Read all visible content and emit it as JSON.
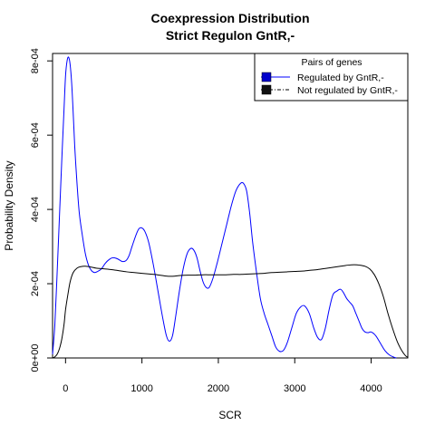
{
  "chart_data": {
    "type": "line",
    "title_line1": "Coexpression Distribution",
    "title_line2": "Strict Regulon GntR,-",
    "xlabel": "SCR",
    "ylabel": "Probability Density",
    "xlim": [
      -170,
      4480
    ],
    "ylim": [
      0,
      0.00082
    ],
    "x_ticks": [
      0,
      1000,
      2000,
      3000,
      4000
    ],
    "x_tick_labels": [
      "0",
      "1000",
      "2000",
      "3000",
      "4000"
    ],
    "y_ticks": [
      0,
      0.0002,
      0.0004,
      0.0006,
      0.0008
    ],
    "y_tick_labels": [
      "0e+00",
      "2e-04",
      "4e-04",
      "6e-04",
      "8e-04"
    ],
    "grid": false,
    "legend": {
      "title": "Pairs of genes",
      "position": "top-right",
      "entries": [
        "Regulated by  GntR,-",
        "Not regulated by  GntR,-"
      ]
    },
    "series": [
      {
        "name": "Regulated by  GntR,-",
        "color": "#0000ff",
        "style": "solid",
        "points": [
          [
            -170,
            1e-05
          ],
          [
            -140,
            9e-05
          ],
          [
            -110,
            0.00023
          ],
          [
            -80,
            0.00038
          ],
          [
            -50,
            0.00053
          ],
          [
            -20,
            0.00067
          ],
          [
            0,
            0.00076
          ],
          [
            20,
            0.0008
          ],
          [
            40,
            0.00081
          ],
          [
            60,
            0.00079
          ],
          [
            80,
            0.00074
          ],
          [
            100,
            0.00066
          ],
          [
            120,
            0.00057
          ],
          [
            150,
            0.00047
          ],
          [
            180,
            0.00039
          ],
          [
            220,
            0.00033
          ],
          [
            260,
            0.00028
          ],
          [
            300,
            0.00025
          ],
          [
            340,
            0.000235
          ],
          [
            380,
            0.00023
          ],
          [
            420,
            0.000233
          ],
          [
            470,
            0.00024
          ],
          [
            520,
            0.000255
          ],
          [
            570,
            0.000265
          ],
          [
            620,
            0.00027
          ],
          [
            680,
            0.000267
          ],
          [
            740,
            0.00026
          ],
          [
            790,
            0.000262
          ],
          [
            830,
            0.000275
          ],
          [
            870,
            0.0003
          ],
          [
            920,
            0.00033
          ],
          [
            960,
            0.000348
          ],
          [
            1000,
            0.00035
          ],
          [
            1040,
            0.00034
          ],
          [
            1090,
            0.00031
          ],
          [
            1150,
            0.00025
          ],
          [
            1210,
            0.00018
          ],
          [
            1270,
            0.00011
          ],
          [
            1320,
            6e-05
          ],
          [
            1360,
            4.5e-05
          ],
          [
            1400,
            6e-05
          ],
          [
            1440,
            0.00011
          ],
          [
            1490,
            0.00018
          ],
          [
            1540,
            0.00024
          ],
          [
            1590,
            0.00028
          ],
          [
            1640,
            0.000295
          ],
          [
            1680,
            0.00029
          ],
          [
            1720,
            0.00027
          ],
          [
            1760,
            0.000235
          ],
          [
            1800,
            0.000205
          ],
          [
            1840,
            0.00019
          ],
          [
            1880,
            0.00019
          ],
          [
            1930,
            0.000215
          ],
          [
            1990,
            0.00026
          ],
          [
            2050,
            0.00031
          ],
          [
            2110,
            0.00036
          ],
          [
            2170,
            0.00041
          ],
          [
            2230,
            0.00045
          ],
          [
            2290,
            0.00047
          ],
          [
            2330,
            0.00047
          ],
          [
            2370,
            0.00045
          ],
          [
            2410,
            0.00039
          ],
          [
            2450,
            0.00031
          ],
          [
            2500,
            0.00023
          ],
          [
            2550,
            0.00016
          ],
          [
            2600,
            0.00012
          ],
          [
            2650,
            9e-05
          ],
          [
            2700,
            6e-05
          ],
          [
            2750,
            3e-05
          ],
          [
            2800,
            1.8e-05
          ],
          [
            2850,
            2e-05
          ],
          [
            2900,
            4e-05
          ],
          [
            2960,
            8e-05
          ],
          [
            3020,
            0.00012
          ],
          [
            3080,
            0.000138
          ],
          [
            3130,
            0.00014
          ],
          [
            3190,
            0.00012
          ],
          [
            3250,
            8e-05
          ],
          [
            3300,
            5.5e-05
          ],
          [
            3350,
            5e-05
          ],
          [
            3400,
            8e-05
          ],
          [
            3450,
            0.00013
          ],
          [
            3500,
            0.00017
          ],
          [
            3550,
            0.00018
          ],
          [
            3600,
            0.000185
          ],
          [
            3640,
            0.000175
          ],
          [
            3680,
            0.00016
          ],
          [
            3720,
            0.00015
          ],
          [
            3760,
            0.00014
          ],
          [
            3800,
            0.00012
          ],
          [
            3840,
            0.0001
          ],
          [
            3880,
            8e-05
          ],
          [
            3920,
            7e-05
          ],
          [
            3960,
            6.8e-05
          ],
          [
            4000,
            7e-05
          ],
          [
            4060,
            6e-05
          ],
          [
            4120,
            4e-05
          ],
          [
            4180,
            2e-05
          ],
          [
            4240,
            8e-06
          ],
          [
            4300,
            2e-06
          ],
          [
            4330,
            0.0
          ]
        ]
      },
      {
        "name": "Not regulated by  GntR,-",
        "color": "#000000",
        "style": "solid",
        "points": [
          [
            -170,
            0.0
          ],
          [
            -140,
            3e-06
          ],
          [
            -110,
            1e-05
          ],
          [
            -80,
            2.5e-05
          ],
          [
            -50,
            5e-05
          ],
          [
            -20,
            9e-05
          ],
          [
            0,
            0.00013
          ],
          [
            30,
            0.00017
          ],
          [
            60,
            0.000205
          ],
          [
            100,
            0.00023
          ],
          [
            150,
            0.000242
          ],
          [
            200,
            0.000246
          ],
          [
            260,
            0.000247
          ],
          [
            330,
            0.000245
          ],
          [
            400,
            0.000242
          ],
          [
            500,
            0.00024
          ],
          [
            600,
            0.000238
          ],
          [
            700,
            0.000235
          ],
          [
            800,
            0.000232
          ],
          [
            900,
            0.00023
          ],
          [
            1000,
            0.000228
          ],
          [
            1100,
            0.000226
          ],
          [
            1200,
            0.000224
          ],
          [
            1300,
            0.000221
          ],
          [
            1400,
            0.00022
          ],
          [
            1500,
            0.000222
          ],
          [
            1600,
            0.000223
          ],
          [
            1700,
            0.000223
          ],
          [
            1800,
            0.000224
          ],
          [
            1900,
            0.000224
          ],
          [
            2000,
            0.000224
          ],
          [
            2100,
            0.000224
          ],
          [
            2200,
            0.000225
          ],
          [
            2300,
            0.000225
          ],
          [
            2400,
            0.000226
          ],
          [
            2500,
            0.000227
          ],
          [
            2600,
            0.000228
          ],
          [
            2700,
            0.00023
          ],
          [
            2800,
            0.000231
          ],
          [
            2900,
            0.000232
          ],
          [
            3000,
            0.000233
          ],
          [
            3100,
            0.000234
          ],
          [
            3200,
            0.000236
          ],
          [
            3300,
            0.000238
          ],
          [
            3400,
            0.000241
          ],
          [
            3500,
            0.000244
          ],
          [
            3600,
            0.000247
          ],
          [
            3700,
            0.00025
          ],
          [
            3780,
            0.000251
          ],
          [
            3850,
            0.00025
          ],
          [
            3920,
            0.000247
          ],
          [
            3980,
            0.00024
          ],
          [
            4040,
            0.000225
          ],
          [
            4100,
            0.0002
          ],
          [
            4160,
            0.000165
          ],
          [
            4220,
            0.00012
          ],
          [
            4280,
            8e-05
          ],
          [
            4340,
            4.5e-05
          ],
          [
            4400,
            2e-05
          ],
          [
            4450,
            6e-06
          ],
          [
            4480,
            2e-06
          ]
        ]
      }
    ]
  }
}
